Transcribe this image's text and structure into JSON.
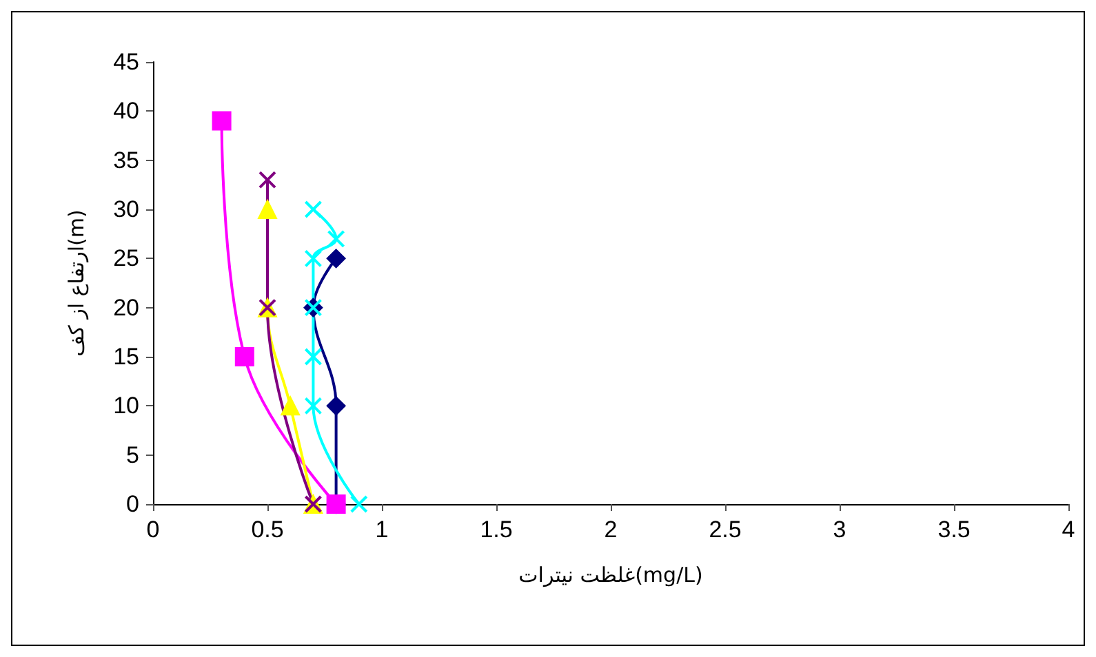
{
  "chart_data": {
    "type": "line",
    "xlabel": "غلظت نیترات(mg/L)",
    "ylabel": "ارتفاع از کف(m)",
    "xlim": [
      0,
      4
    ],
    "xticks": [
      0,
      0.5,
      1,
      1.5,
      2,
      2.5,
      3,
      3.5,
      4
    ],
    "ylim": [
      0,
      45
    ],
    "yticks": [
      0,
      5,
      10,
      15,
      20,
      25,
      30,
      35,
      40,
      45
    ],
    "grid": false,
    "series": [
      {
        "color": "#000080",
        "marker": "diamond",
        "x": [
          0.8,
          0.8,
          0.7,
          0.8
        ],
        "values": [
          0,
          10,
          20,
          25
        ]
      },
      {
        "color": "#ff00ff",
        "marker": "square",
        "x": [
          0.8,
          0.4,
          0.3
        ],
        "values": [
          0,
          15,
          39
        ]
      },
      {
        "color": "#ffff00",
        "marker": "triangle",
        "x": [
          0.7,
          0.6,
          0.5,
          0.5
        ],
        "values": [
          0,
          10,
          20,
          30
        ]
      },
      {
        "color": "#800080",
        "marker": "cross",
        "x": [
          0.7,
          0.5,
          0.5
        ],
        "values": [
          0,
          20,
          33
        ]
      },
      {
        "color": "#00ffff",
        "marker": "cross",
        "x": [
          0.9,
          0.7,
          0.7,
          0.7,
          0.7,
          0.8,
          0.7
        ],
        "values": [
          0,
          10,
          15,
          20,
          25,
          27,
          30
        ]
      }
    ]
  }
}
